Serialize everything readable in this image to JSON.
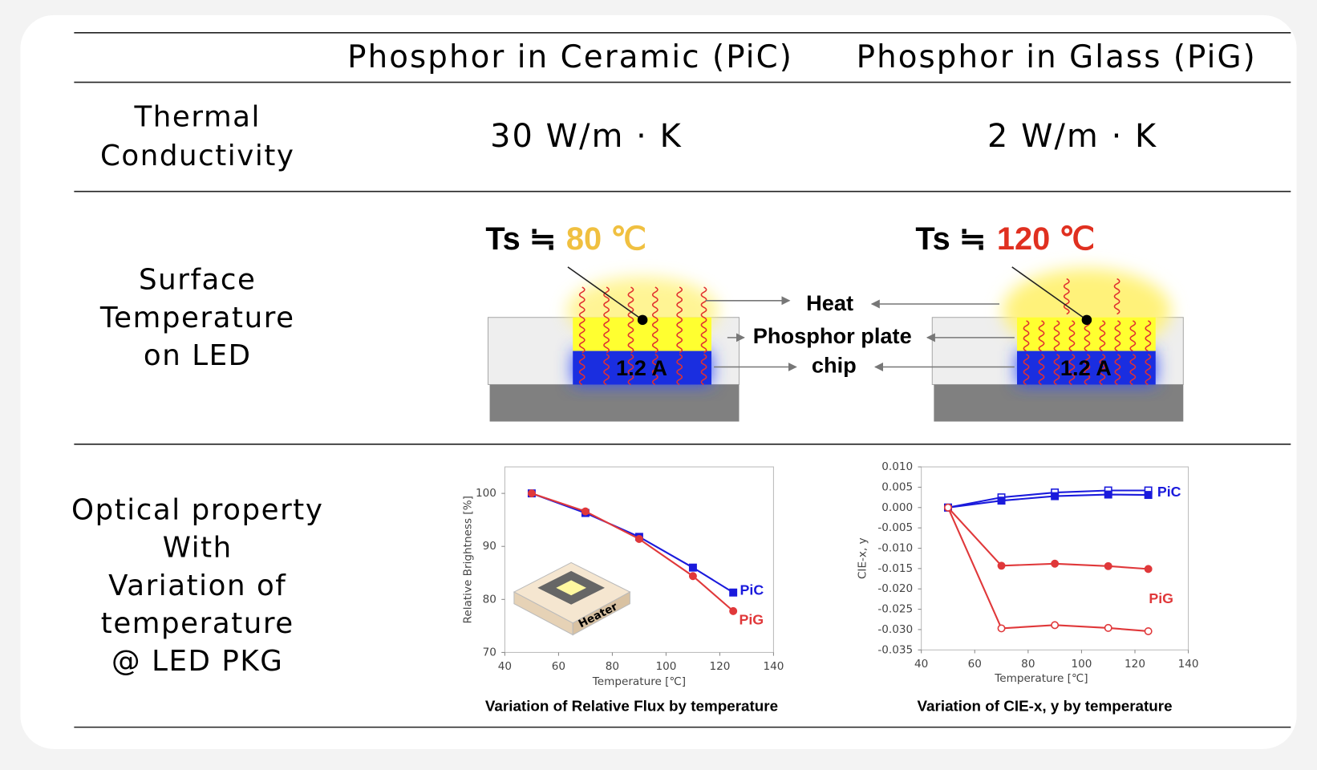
{
  "table": {
    "columns": [
      "Phosphor in Ceramic (PiC)",
      "Phosphor in Glass (PiG)"
    ],
    "rows": [
      {
        "label": [
          "Thermal",
          "Conductivity"
        ],
        "cells": [
          "30 W/m · K",
          "2 W/m · K"
        ]
      },
      {
        "label": [
          "Surface",
          "Temperature",
          "on LED"
        ],
        "ts_prefix": "Ts ≒",
        "cells": [
          "80 ℃",
          "120 ℃"
        ],
        "current": "1.2 A",
        "parts": [
          "Heat",
          "Phosphor plate",
          "chip"
        ]
      },
      {
        "label": [
          "Optical property",
          "With",
          "Variation of",
          "temperature",
          "@ LED PKG"
        ]
      }
    ]
  },
  "chart_data": [
    {
      "type": "line",
      "caption": "Variation of Relative Flux by temperature",
      "x_label": "Temperature [℃]",
      "y_label": "Relative Brightness [%]",
      "inset_label": "Heater",
      "x": [
        50,
        70,
        90,
        110,
        125
      ],
      "series": [
        {
          "name": "PiC",
          "color": "#1a1adc",
          "marker": "square",
          "filled": true,
          "values": [
            100,
            96.3,
            91.8,
            86,
            81.3
          ]
        },
        {
          "name": "PiG",
          "color": "#e0383a",
          "marker": "circle",
          "filled": true,
          "values": [
            100,
            96.6,
            91.4,
            84.4,
            77.8
          ]
        }
      ],
      "xlim": [
        40,
        140
      ],
      "xticks": [
        40,
        60,
        80,
        100,
        120,
        140
      ],
      "ylim": [
        70,
        105
      ],
      "yticks": [
        70,
        80,
        90,
        100
      ]
    },
    {
      "type": "line",
      "caption": "Variation of CIE-x, y by temperature",
      "x_label": "Temperature [℃]",
      "y_label": "CIE-x, y",
      "x": [
        50,
        70,
        90,
        110,
        125
      ],
      "series": [
        {
          "name": "PiC",
          "color": "#1a1adc",
          "marker": "square",
          "filled": false,
          "values": [
            0,
            0.0025,
            0.0037,
            0.0042,
            0.0042
          ]
        },
        {
          "color": "#1a1adc",
          "marker": "square",
          "filled": true,
          "values": [
            0,
            0.0017,
            0.0028,
            0.0032,
            0.0031
          ]
        },
        {
          "name": "PiG",
          "color": "#e0383a",
          "marker": "circle",
          "filled": true,
          "values": [
            0,
            -0.0143,
            -0.0138,
            -0.0144,
            -0.0151
          ]
        },
        {
          "color": "#e0383a",
          "marker": "circle",
          "filled": false,
          "values": [
            0,
            -0.0297,
            -0.0289,
            -0.0296,
            -0.0304
          ]
        }
      ],
      "xlim": [
        40,
        140
      ],
      "xticks": [
        40,
        60,
        80,
        100,
        120,
        140
      ],
      "ylim": [
        -0.035,
        0.01
      ],
      "yticks": [
        {
          "value": -0.035,
          "label": "-0.035"
        },
        {
          "value": -0.03,
          "label": "-0.030"
        },
        {
          "value": -0.025,
          "label": "-0.025"
        },
        {
          "value": -0.02,
          "label": "-0.020"
        },
        {
          "value": -0.015,
          "label": "-0.015"
        },
        {
          "value": -0.01,
          "label": "-0.010"
        },
        {
          "value": -0.005,
          "label": "-0.005"
        },
        {
          "value": 0,
          "label": "0.000"
        },
        {
          "value": 0.005,
          "label": "0.005"
        },
        {
          "value": 0.01,
          "label": "0.010"
        }
      ]
    }
  ]
}
